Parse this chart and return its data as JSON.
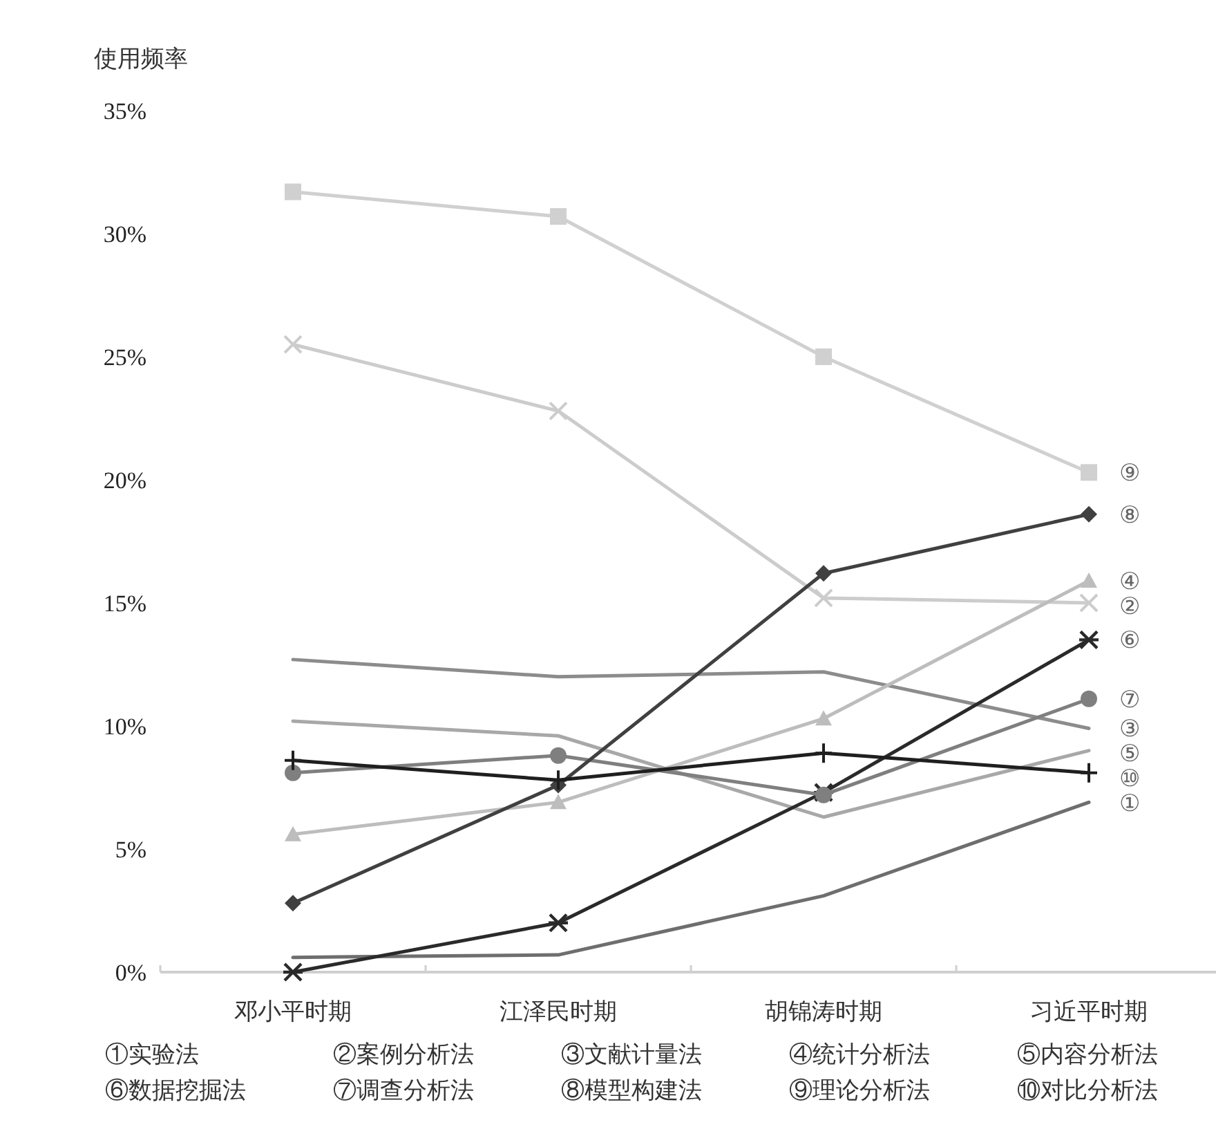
{
  "chart_data": {
    "type": "line",
    "ylabel": "使用频率",
    "categories": [
      "邓小平时期",
      "江泽民时期",
      "胡锦涛时期",
      "习近平时期"
    ],
    "ylim": [
      0,
      35
    ],
    "yticks": [
      {
        "value": 0,
        "label": "0%"
      },
      {
        "value": 5,
        "label": "5%"
      },
      {
        "value": 10,
        "label": "10%"
      },
      {
        "value": 15,
        "label": "15%"
      },
      {
        "value": 20,
        "label": "20%"
      },
      {
        "value": 25,
        "label": "25%"
      },
      {
        "value": 30,
        "label": "30%"
      },
      {
        "value": 35,
        "label": "35%"
      }
    ],
    "annotations": [
      "①实验法",
      "②案例分析法",
      "③文献计量法",
      "④统计分析法",
      "⑤内容分析法",
      "⑥数据挖掘法",
      "⑦调查分析法",
      "⑧模型构建法",
      "⑨理论分析法",
      "⑩对比分析法"
    ],
    "series": [
      {
        "name": "①",
        "color": "#6e6e6e",
        "marker": "none",
        "values": [
          0.6,
          0.7,
          3.1,
          6.9
        ]
      },
      {
        "name": "②",
        "color": "#cccccc",
        "marker": "x",
        "values": [
          25.5,
          22.8,
          15.2,
          15.0
        ]
      },
      {
        "name": "③",
        "color": "#8c8c8c",
        "marker": "none",
        "values": [
          12.7,
          12.0,
          12.2,
          9.9
        ]
      },
      {
        "name": "④",
        "color": "#bdbdbd",
        "marker": "triangle",
        "values": [
          5.6,
          6.9,
          10.3,
          15.9
        ]
      },
      {
        "name": "⑤",
        "color": "#a8a8a8",
        "marker": "none",
        "values": [
          10.2,
          9.6,
          6.3,
          9.0
        ]
      },
      {
        "name": "⑥",
        "color": "#2a2a2a",
        "marker": "cross",
        "values": [
          0,
          2.0,
          7.3,
          13.5
        ]
      },
      {
        "name": "⑦",
        "color": "#7f7f7f",
        "marker": "circle",
        "values": [
          8.1,
          8.8,
          7.2,
          11.1
        ]
      },
      {
        "name": "⑧",
        "color": "#404040",
        "marker": "diamond",
        "values": [
          2.8,
          7.6,
          16.2,
          18.6
        ]
      },
      {
        "name": "⑨",
        "color": "#d0d0d0",
        "marker": "square",
        "values": [
          31.7,
          30.7,
          25.0,
          20.3
        ]
      },
      {
        "name": "⑩",
        "color": "#1f1f1f",
        "marker": "plus",
        "values": [
          8.6,
          7.8,
          8.9,
          8.1
        ]
      }
    ]
  }
}
